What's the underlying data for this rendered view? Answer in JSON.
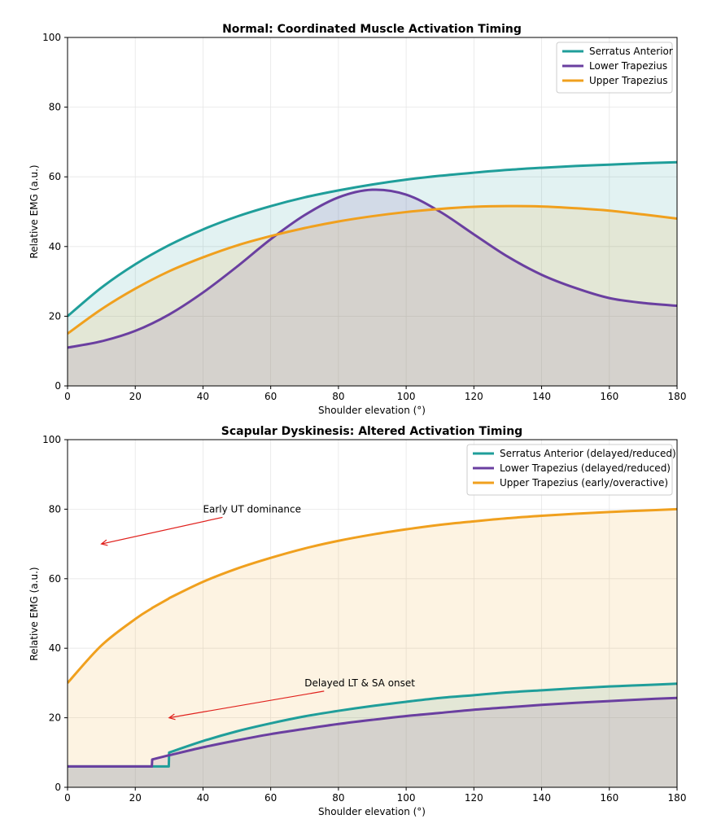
{
  "chart_data": [
    {
      "type": "line",
      "title": "Normal: Coordinated Muscle Activation Timing",
      "xlabel": "Shoulder elevation (°)",
      "ylabel": "Relative EMG (a.u.)",
      "xlim": [
        0,
        180
      ],
      "ylim": [
        0,
        100
      ],
      "x_ticks": [
        0,
        20,
        40,
        60,
        80,
        100,
        120,
        140,
        160,
        180
      ],
      "y_ticks": [
        0,
        20,
        40,
        60,
        80,
        100
      ],
      "grid": true,
      "legend_position": "top-right",
      "x": [
        0,
        10,
        20,
        30,
        40,
        50,
        60,
        70,
        80,
        90,
        100,
        110,
        120,
        130,
        140,
        150,
        160,
        170,
        180
      ],
      "series": [
        {
          "name": "Serratus Anterior",
          "color": "#1f9e9a",
          "values": [
            20.0,
            28.2,
            34.9,
            40.4,
            44.9,
            48.6,
            51.6,
            54.1,
            56.1,
            57.8,
            59.2,
            60.3,
            61.2,
            62.0,
            62.6,
            63.1,
            63.5,
            63.9,
            64.2
          ]
        },
        {
          "name": "Lower Trapezius",
          "color": "#6a3fa0",
          "values": [
            11.0,
            12.8,
            15.8,
            20.5,
            26.8,
            34.2,
            42.1,
            49.0,
            54.1,
            56.3,
            54.9,
            50.0,
            43.5,
            37.1,
            31.9,
            28.1,
            25.2,
            23.8,
            23.0
          ]
        },
        {
          "name": "Upper Trapezius",
          "color": "#f0a01e",
          "values": [
            15.0,
            22.0,
            27.9,
            32.9,
            36.9,
            40.3,
            43.0,
            45.3,
            47.2,
            48.7,
            49.9,
            50.8,
            51.4,
            51.6,
            51.5,
            51.0,
            50.3,
            49.2,
            48.0
          ]
        }
      ]
    },
    {
      "type": "line",
      "title": "Scapular Dyskinesis: Altered Activation Timing",
      "xlabel": "Shoulder elevation (°)",
      "ylabel": "Relative EMG (a.u.)",
      "xlim": [
        0,
        180
      ],
      "ylim": [
        0,
        100
      ],
      "x_ticks": [
        0,
        20,
        40,
        60,
        80,
        100,
        120,
        140,
        160,
        180
      ],
      "y_ticks": [
        0,
        20,
        40,
        60,
        80,
        100
      ],
      "grid": true,
      "legend_position": "top-right",
      "x": [
        0,
        10,
        20,
        24.9,
        25,
        29.9,
        30,
        40,
        50,
        60,
        70,
        80,
        90,
        100,
        110,
        120,
        130,
        140,
        150,
        160,
        170,
        180
      ],
      "series": [
        {
          "name": "Serratus Anterior (delayed/reduced)",
          "color": "#1f9e9a",
          "values": [
            6,
            6,
            6,
            6,
            6,
            6,
            10.0,
            13.3,
            16.1,
            18.4,
            20.4,
            22.0,
            23.4,
            24.6,
            25.7,
            26.5,
            27.3,
            27.9,
            28.5,
            29.0,
            29.4,
            29.8
          ]
        },
        {
          "name": "Lower Trapezius (delayed/reduced)",
          "color": "#6a3fa0",
          "values": [
            6,
            6,
            6,
            6,
            8.0,
            9.2,
            9.2,
            11.5,
            13.5,
            15.3,
            16.8,
            18.2,
            19.4,
            20.5,
            21.4,
            22.3,
            23.0,
            23.7,
            24.3,
            24.8,
            25.3,
            25.7
          ]
        },
        {
          "name": "Upper Trapezius (early/overactive)",
          "color": "#f0a01e",
          "values": [
            30.0,
            40.8,
            48.4,
            51.5,
            51.6,
            54.3,
            54.4,
            59.1,
            62.9,
            66.0,
            68.7,
            70.9,
            72.7,
            74.2,
            75.5,
            76.5,
            77.4,
            78.1,
            78.7,
            79.2,
            79.6,
            80.0
          ]
        }
      ],
      "annotations": [
        {
          "text": "Early UT dominance",
          "text_xy": [
            40,
            80
          ],
          "arrow_to": [
            10,
            70
          ]
        },
        {
          "text": "Delayed LT & SA onset",
          "text_xy": [
            70,
            30
          ],
          "arrow_to": [
            30,
            20
          ]
        }
      ]
    }
  ]
}
